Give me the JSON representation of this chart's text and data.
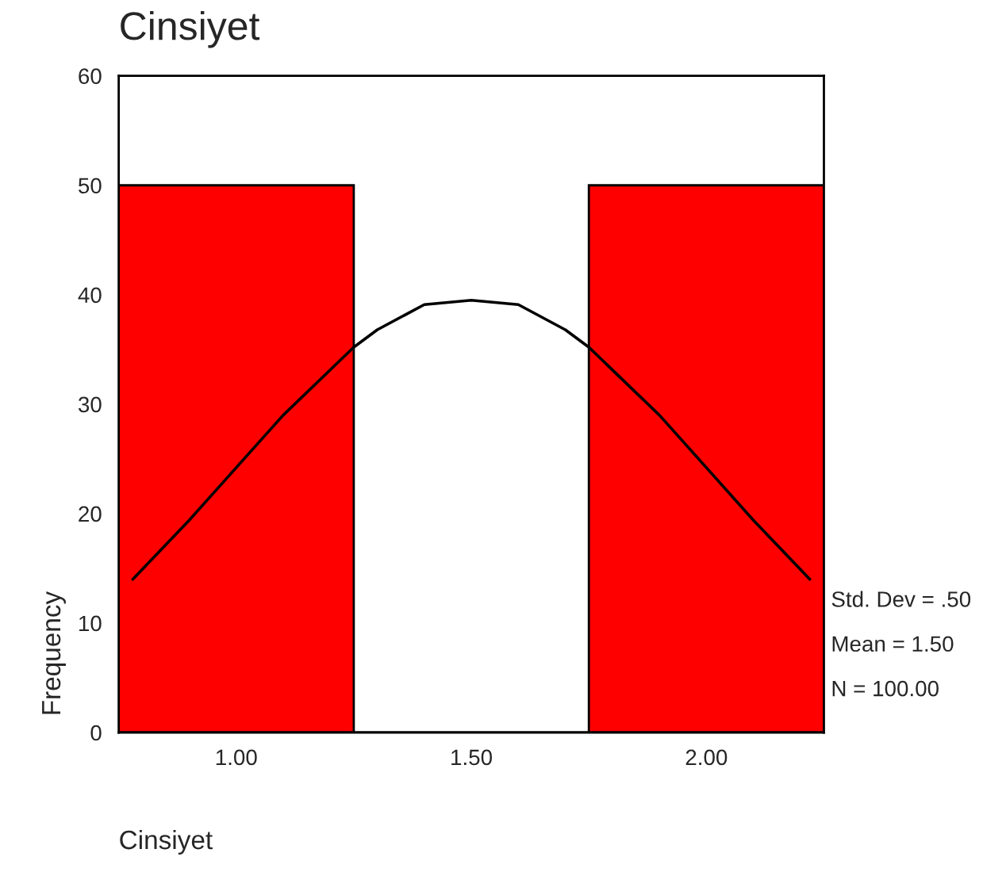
{
  "chart_data": {
    "type": "histogram",
    "title": "Cinsiyet",
    "xlabel": "Cinsiyet",
    "ylabel": "Frequency",
    "bins": [
      0.75,
      1.25,
      1.75,
      2.25
    ],
    "values": [
      50,
      0,
      50
    ],
    "color": "#ff0000",
    "series": [
      {
        "type": "line",
        "color": "#000000",
        "x": [
          0.78,
          0.9,
          1.0,
          1.1,
          1.25,
          1.3,
          1.4,
          1.5,
          1.6,
          1.7,
          1.75,
          1.9,
          2.0,
          2.1,
          2.22
        ],
        "values": [
          14,
          19.4,
          24.2,
          29,
          35.2,
          36.8,
          39.1,
          39.5,
          39.1,
          36.8,
          35.2,
          29,
          24.2,
          19.4,
          14
        ]
      }
    ],
    "xlim": [
      0.75,
      2.25
    ],
    "xticks": [
      {
        "value": 1,
        "label": "1.00"
      },
      {
        "value": 1.5,
        "label": "1.50"
      },
      {
        "value": 2,
        "label": "2.00"
      }
    ],
    "ylim": [
      0,
      60
    ],
    "yticks": [
      0,
      10,
      20,
      30,
      40,
      50,
      60
    ],
    "grid": false,
    "legend": false,
    "annotations": [
      "Std. Dev = .50",
      "Mean = 1.50",
      "N = 100.00"
    ]
  }
}
